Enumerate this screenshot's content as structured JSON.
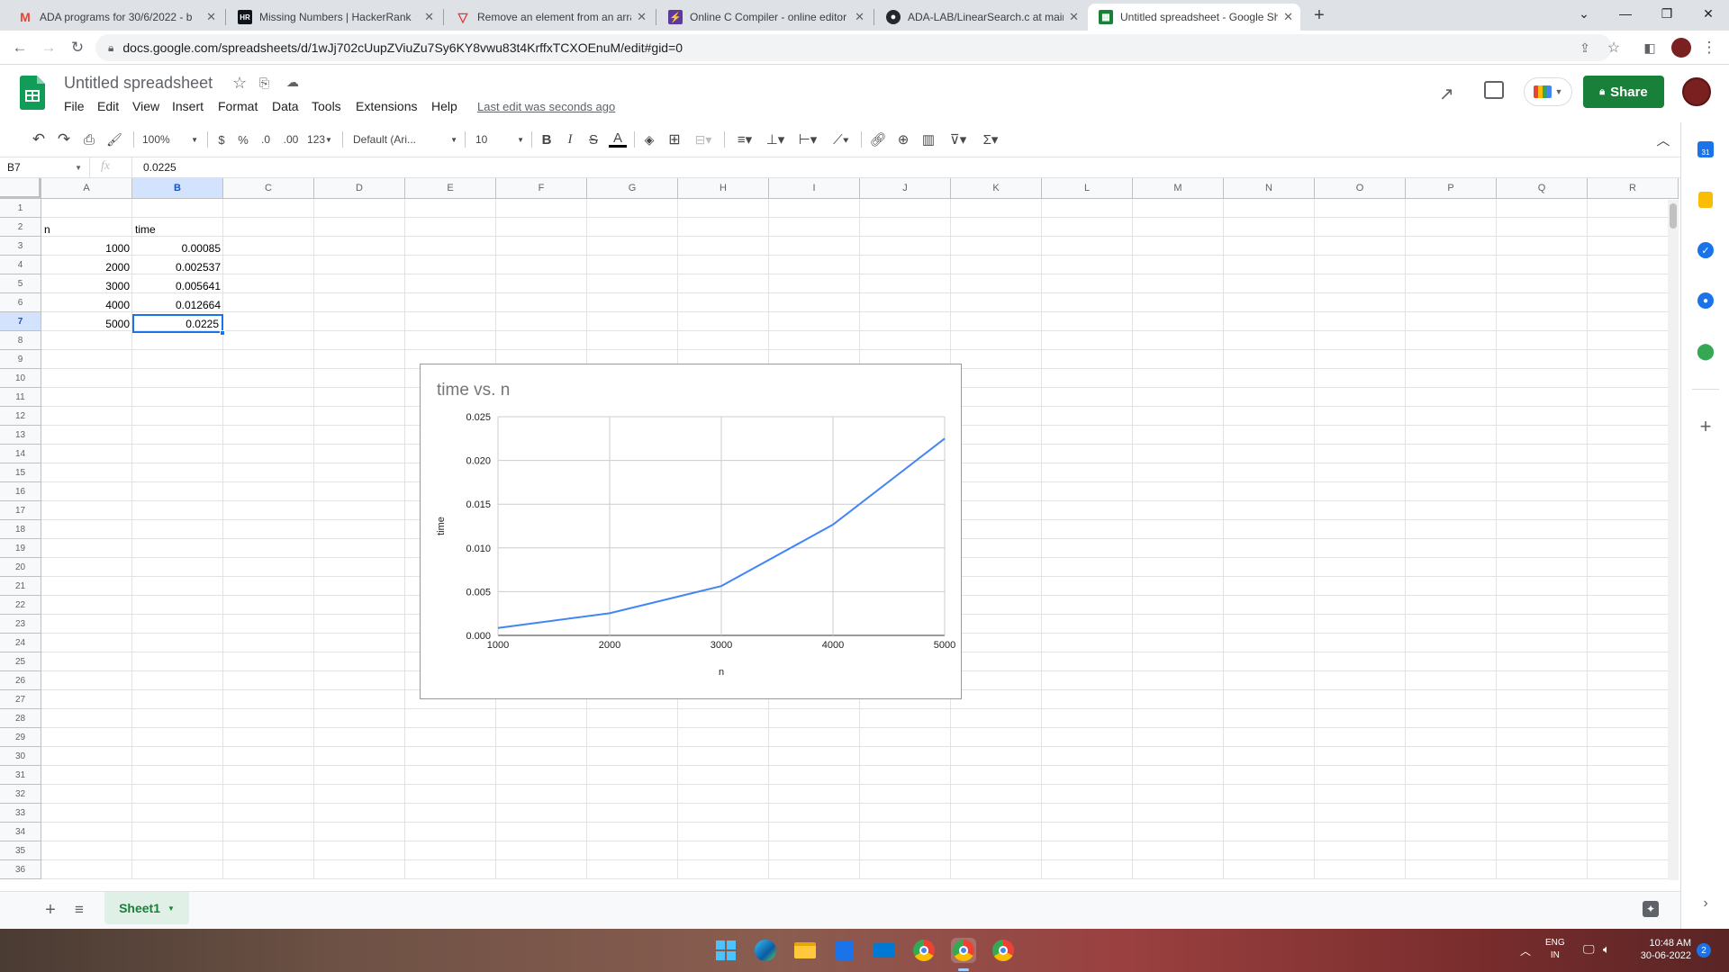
{
  "browser": {
    "tabs": [
      {
        "title": "ADA programs for 30/6/2022 - b",
        "favicon": "gmail-icon",
        "active": false
      },
      {
        "title": "Missing Numbers | HackerRank",
        "favicon": "hackerrank-icon",
        "active": false
      },
      {
        "title": "Remove an element from an arra",
        "favicon": "tutorial-icon",
        "active": false
      },
      {
        "title": "Online C Compiler - online editor",
        "favicon": "compiler-icon",
        "active": false
      },
      {
        "title": "ADA-LAB/LinearSearch.c at main",
        "favicon": "github-icon",
        "active": false
      },
      {
        "title": "Untitled spreadsheet - Google Sh",
        "favicon": "sheets-icon",
        "active": true
      }
    ],
    "new_tab": "+",
    "url": "docs.google.com/spreadsheets/d/1wJj702cUupZViuZu7Sy6KY8vwu83t4KrffxTCXOEnuM/edit#gid=0"
  },
  "doc": {
    "title": "Untitled spreadsheet",
    "menus": [
      "File",
      "Edit",
      "View",
      "Insert",
      "Format",
      "Data",
      "Tools",
      "Extensions",
      "Help"
    ],
    "last_edit": "Last edit was seconds ago",
    "share_label": "Share"
  },
  "toolbar": {
    "zoom": "100%",
    "currency": "$",
    "percent": "%",
    "dec_decrease": ".0",
    "dec_increase": ".00",
    "more_formats": "123",
    "font": "Default (Ari...",
    "font_size": "10"
  },
  "formula_bar": {
    "name_box": "B7",
    "fx": "fx",
    "value": "0.0225"
  },
  "grid": {
    "columns": [
      "A",
      "B",
      "C",
      "D",
      "E",
      "F",
      "G",
      "H",
      "I",
      "J",
      "K",
      "L",
      "M",
      "N",
      "O",
      "P",
      "Q",
      "R"
    ],
    "rows": [
      "1",
      "2",
      "3",
      "4",
      "5",
      "6",
      "7",
      "8",
      "9",
      "10",
      "11",
      "12",
      "13",
      "14",
      "15",
      "16",
      "17",
      "18",
      "19",
      "20",
      "21",
      "22",
      "23",
      "24",
      "25",
      "26",
      "27",
      "28",
      "29",
      "30",
      "31",
      "32",
      "33",
      "34",
      "35",
      "36"
    ],
    "cells": {
      "A2": "n",
      "B2": "time",
      "A3": "1000",
      "B3": "0.00085",
      "A4": "2000",
      "B4": "0.002537",
      "A5": "3000",
      "B5": "0.005641",
      "A6": "4000",
      "B6": "0.012664",
      "A7": "5000",
      "B7": "0.0225"
    },
    "selected_cell": "B7"
  },
  "chart_data": {
    "type": "line",
    "title": "time vs. n",
    "xlabel": "n",
    "ylabel": "time",
    "x": [
      1000,
      2000,
      3000,
      4000,
      5000
    ],
    "series": [
      {
        "values": [
          0.00085,
          0.002537,
          0.005641,
          0.012664,
          0.0225
        ],
        "color": "#4285f4"
      }
    ],
    "xlim": [
      1000,
      5000
    ],
    "ylim": [
      0,
      0.025
    ],
    "x_ticks": [
      "1000",
      "2000",
      "3000",
      "4000",
      "5000"
    ],
    "y_ticks": [
      "0.000",
      "0.005",
      "0.010",
      "0.015",
      "0.020",
      "0.025"
    ],
    "grid": true,
    "legend": "none"
  },
  "sheets": {
    "add": "+",
    "active_sheet": "Sheet1"
  },
  "taskbar": {
    "lang_line1": "ENG",
    "lang_line2": "IN",
    "time": "10:48 AM",
    "date": "30-06-2022",
    "notifications": "2"
  },
  "colors": {
    "sheets_green": "#188038",
    "share_bg": "#188038",
    "selection_blue": "#1a73e8",
    "series_blue": "#4285f4"
  }
}
